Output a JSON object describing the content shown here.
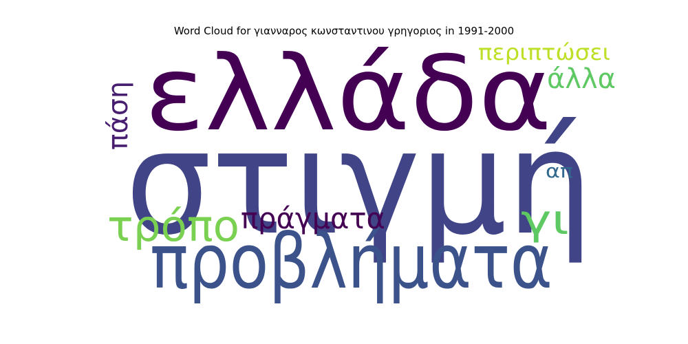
{
  "chart_data": {
    "type": "wordcloud",
    "title": "Word Cloud for γιανναρος κωνσταντινου γρηγοριος in 1991-2000",
    "words": [
      {
        "text": "στιγμή",
        "color": "#414487"
      },
      {
        "text": "ελλάδα",
        "color": "#440154"
      },
      {
        "text": "προβλήματα",
        "color": "#3b528b"
      },
      {
        "text": "τρόπο",
        "color": "#7ad151"
      },
      {
        "text": "πράγματα",
        "color": "#440154"
      },
      {
        "text": "γι",
        "color": "#5ec962"
      },
      {
        "text": "περιπτώσει",
        "color": "#bddf26"
      },
      {
        "text": "άλλα",
        "color": "#5ec962"
      },
      {
        "text": "πάση",
        "color": "#481f70"
      },
      {
        "text": "απ",
        "color": "#31688e"
      }
    ]
  }
}
